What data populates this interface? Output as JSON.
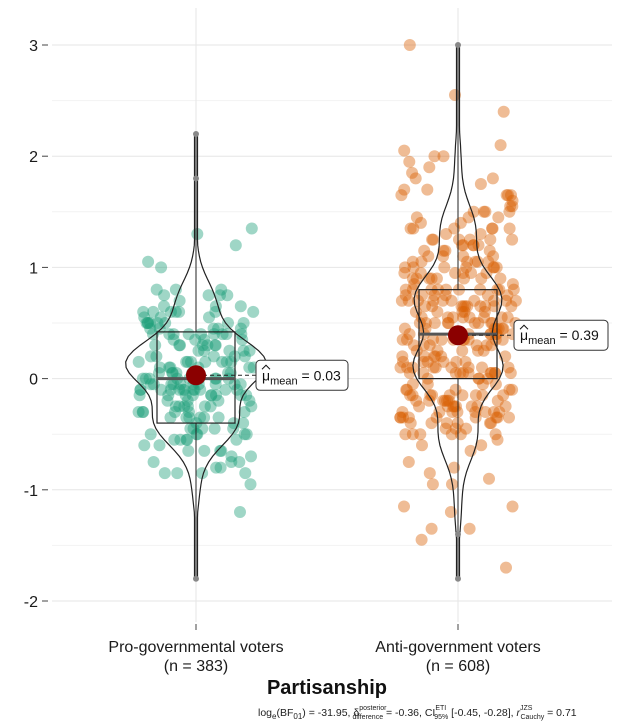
{
  "chart_data": {
    "type": "violin-box-scatter",
    "xlabel": "Partisanship",
    "ylim": [
      -2.2,
      3.3
    ],
    "yticks": [
      -2,
      -1,
      0,
      1,
      2,
      3
    ],
    "ytick_labels": [
      "-2",
      "-1",
      "0",
      "1",
      "2",
      "3"
    ],
    "grid": true,
    "groups": [
      {
        "name": "Pro-governmental voters",
        "n_label": "(n = 383)",
        "color": "#1B9E77",
        "mean": 0.03,
        "mean_label": "= 0.03",
        "median": 0.0,
        "q1": -0.4,
        "q3": 0.42,
        "min": -1.8,
        "max": 2.2,
        "outliers": [
          2.2,
          1.8,
          -1.8
        ]
      },
      {
        "name": "Anti-government voters",
        "n_label": "(n = 608)",
        "color": "#D95F02",
        "mean": 0.39,
        "mean_label": "= 0.39",
        "median": 0.4,
        "q1": 0.0,
        "q3": 0.8,
        "min": -1.8,
        "max": 3.0,
        "outliers": [
          3.0,
          -1.4,
          -1.8
        ]
      }
    ],
    "mean_symbol": "μ",
    "mean_subscript": "mean",
    "subtitle_parts": {
      "bf": "log",
      "bf_sub": "e",
      "bf_tail": "(BF",
      "bf_sub2": "01",
      "bf_val": ") = -31.95,",
      "delta": "δ",
      "delta_sup": "posterior",
      "delta_sub": "difference",
      "delta_val": "= -0.36,",
      "ci": "CI",
      "ci_sup": "ETI",
      "ci_sub": "95%",
      "ci_val": "[-0.45, -0.28],",
      "r": "r",
      "r_sup": "JZS",
      "r_sub": "Cauchy",
      "r_val": "= 0.71"
    }
  }
}
